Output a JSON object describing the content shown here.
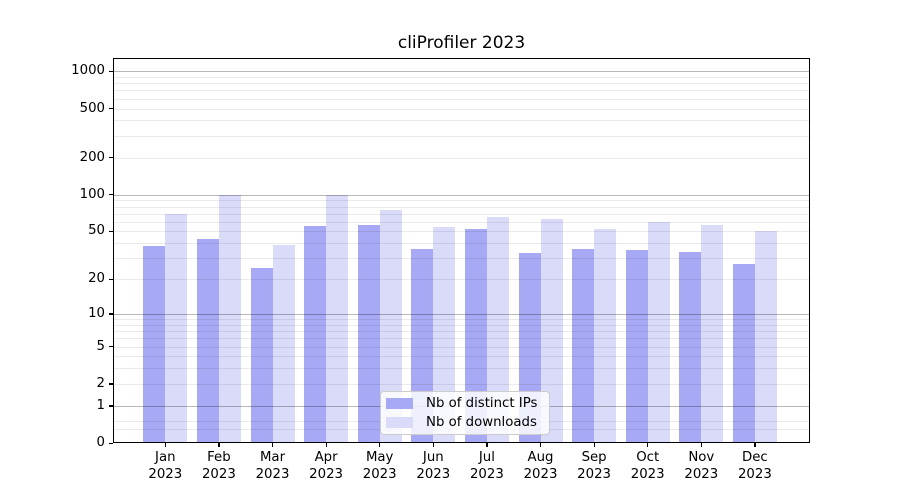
{
  "figure_title": "cliProfiler 2023",
  "chart_data": {
    "type": "bar",
    "title": "cliProfiler 2023",
    "categories": [
      "Jan",
      "Feb",
      "Mar",
      "Apr",
      "May",
      "Jun",
      "Jul",
      "Aug",
      "Sep",
      "Oct",
      "Nov",
      "Dec"
    ],
    "x_tick_year": "2023",
    "series": [
      {
        "name": "Nb of distinct IPs",
        "color": "#a7a9f5",
        "values": [
          38,
          43,
          25,
          55,
          57,
          36,
          52,
          33,
          36,
          35,
          34,
          27
        ]
      },
      {
        "name": "Nb of downloads",
        "color": "#d9dbf9",
        "values": [
          70,
          100,
          39,
          100,
          75,
          54,
          66,
          63,
          52,
          60,
          57,
          50
        ]
      }
    ],
    "xlabel": "",
    "ylabel": "",
    "yscale": "symlog-log1p",
    "ylim": [
      0,
      1280
    ],
    "yticks": [
      0,
      1,
      2,
      5,
      10,
      20,
      50,
      100,
      200,
      500,
      1000
    ],
    "ytick_labels": [
      "0",
      "1",
      "2",
      "5",
      "10",
      "20",
      "50",
      "100",
      "200",
      "500",
      "1000"
    ],
    "grid": true,
    "grid_major_at": [
      1,
      10,
      100,
      1000
    ],
    "legend_position": "lower center"
  }
}
